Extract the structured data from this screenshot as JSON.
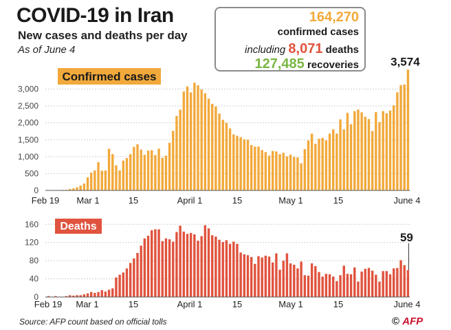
{
  "header": {
    "title": "COVID-19 in Iran",
    "subtitle": "New cases and deaths per day",
    "as_of": "As of June 4"
  },
  "summary": {
    "confirmed_value": "164,270",
    "confirmed_label": "confirmed cases",
    "deaths_prefix": "including",
    "deaths_value": "8,071",
    "deaths_label": "deaths",
    "recoveries_value": "127,485",
    "recoveries_label": "recoveries"
  },
  "footer": {
    "source": "Source: AFP count based on official tolls",
    "copyright": "©",
    "agency": "AFP"
  },
  "colors": {
    "confirmed": "#f2a93b",
    "deaths": "#e0533e",
    "recoveries": "#7ab642"
  },
  "chart_data": [
    {
      "type": "bar",
      "label": "Confirmed cases",
      "x_tick_labels": [
        "Feb 19",
        "Mar 1",
        "15",
        "April 1",
        "15",
        "May 1",
        "15",
        "June 4"
      ],
      "y_ticks": [
        "0",
        "500",
        "1,000",
        "1,500",
        "2,000",
        "2,500",
        "3,000"
      ],
      "ylim": [
        0,
        3600
      ],
      "last_value_label": "3,574",
      "values": [
        2,
        3,
        13,
        10,
        15,
        18,
        44,
        61,
        95,
        143,
        205,
        385,
        523,
        591,
        835,
        586,
        591,
        1234,
        1076,
        743,
        595,
        881,
        958,
        1075,
        1289,
        1365,
        1209,
        1053,
        1178,
        1192,
        1046,
        1237,
        966,
        1028,
        1411,
        1762,
        2206,
        2389,
        2926,
        3076,
        2901,
        3186,
        3111,
        2987,
        2875,
        2715,
        2560,
        2483,
        2274,
        2089,
        1997,
        1837,
        1657,
        1617,
        1574,
        1512,
        1499,
        1343,
        1294,
        1297,
        1194,
        1134,
        1030,
        1168,
        1153,
        1073,
        1112,
        1006,
        1058,
        991,
        976,
        802,
        1223,
        1481,
        1680,
        1383,
        1529,
        1556,
        1485,
        1681,
        1808,
        1683,
        2102,
        1806,
        2294,
        1958,
        2346,
        2392,
        2311,
        2180,
        2111,
        1757,
        2316,
        2023,
        2346,
        2282,
        2364,
        2516,
        2903,
        3117,
        3134,
        3574
      ]
    },
    {
      "type": "bar",
      "label": "Deaths",
      "x_tick_labels": [
        "Feb 19",
        "Mar 1",
        "15",
        "April 1",
        "15",
        "May 1",
        "15",
        "June 4"
      ],
      "y_ticks": [
        "0",
        "40",
        "80",
        "120",
        "160"
      ],
      "ylim": [
        0,
        165
      ],
      "last_value_label": "59",
      "values": [
        2,
        0,
        2,
        0,
        0,
        2,
        4,
        3,
        4,
        4,
        6,
        8,
        11,
        9,
        11,
        15,
        12,
        16,
        19,
        43,
        49,
        54,
        63,
        75,
        85,
        97,
        113,
        129,
        135,
        147,
        149,
        149,
        123,
        129,
        127,
        122,
        143,
        157,
        144,
        139,
        141,
        138,
        124,
        134,
        158,
        151,
        136,
        133,
        126,
        121,
        125,
        117,
        122,
        117,
        98,
        94,
        92,
        88,
        73,
        90,
        87,
        91,
        89,
        76,
        96,
        60,
        80,
        96,
        74,
        71,
        63,
        78,
        48,
        47,
        74,
        68,
        55,
        45,
        51,
        50,
        45,
        35,
        48,
        69,
        51,
        50,
        65,
        34,
        56,
        62,
        64,
        58,
        49,
        34,
        57,
        57,
        50,
        63,
        64,
        81,
        70,
        59
      ]
    }
  ]
}
